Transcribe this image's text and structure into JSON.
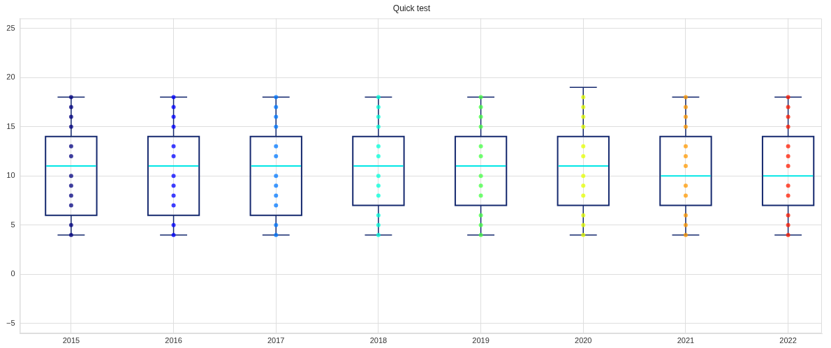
{
  "chart_data": {
    "type": "box",
    "title": "Quick test",
    "xlim": [
      2014.5,
      2022.33
    ],
    "xticks": [
      2015,
      2016,
      2017,
      2018,
      2019,
      2020,
      2021,
      2022
    ],
    "ylim": [
      -6,
      26
    ],
    "yticks": [
      {
        "value": -5,
        "label": "−5"
      },
      0,
      5,
      10,
      15,
      20,
      25
    ],
    "grid": true,
    "marker": "circle",
    "series": [
      {
        "type": "box",
        "color": "#14286e",
        "x": [
          2015,
          2016,
          2017,
          2018,
          2019,
          2020,
          2021,
          2022
        ],
        "boxes": [
          {
            "low": 4,
            "q1": 6,
            "median": 11,
            "q3": 14,
            "high": 18
          },
          {
            "low": 4,
            "q1": 6,
            "median": 11,
            "q3": 14,
            "high": 18
          },
          {
            "low": 4,
            "q1": 6,
            "median": 11,
            "q3": 14,
            "high": 18
          },
          {
            "low": 4,
            "q1": 7,
            "median": 11,
            "q3": 14,
            "high": 18
          },
          {
            "low": 4,
            "q1": 7,
            "median": 11,
            "q3": 14,
            "high": 18
          },
          {
            "low": 4,
            "q1": 7,
            "median": 11,
            "q3": 14,
            "high": 19
          },
          {
            "low": 4,
            "q1": 7,
            "median": 10,
            "q3": 14,
            "high": 18
          },
          {
            "low": 4,
            "q1": 7,
            "median": 10,
            "q3": 14,
            "high": 18
          }
        ]
      },
      {
        "type": "scatter",
        "x": [
          2015,
          2015,
          2015,
          2015,
          2015,
          2015,
          2015,
          2015,
          2015,
          2015,
          2015,
          2015,
          2016,
          2016,
          2016,
          2016,
          2016,
          2016,
          2016,
          2016,
          2016,
          2016,
          2016,
          2016,
          2017,
          2017,
          2017,
          2017,
          2017,
          2017,
          2017,
          2017,
          2017,
          2017,
          2017,
          2017,
          2018,
          2018,
          2018,
          2018,
          2018,
          2018,
          2018,
          2018,
          2018,
          2018,
          2018,
          2018,
          2019,
          2019,
          2019,
          2019,
          2019,
          2019,
          2019,
          2019,
          2019,
          2019,
          2019,
          2019,
          2020,
          2020,
          2020,
          2020,
          2020,
          2020,
          2020,
          2020,
          2020,
          2020,
          2020,
          2020,
          2021,
          2021,
          2021,
          2021,
          2021,
          2021,
          2021,
          2021,
          2021,
          2021,
          2021,
          2021,
          2022,
          2022,
          2022,
          2022,
          2022,
          2022,
          2022,
          2022,
          2022,
          2022,
          2022,
          2022
        ],
        "values": [
          4,
          5,
          7,
          8,
          9,
          10,
          12,
          13,
          15,
          16,
          17,
          18,
          4,
          5,
          7,
          8,
          9,
          10,
          12,
          13,
          15,
          16,
          17,
          18,
          4,
          5,
          7,
          8,
          9,
          10,
          12,
          13,
          15,
          16,
          17,
          18,
          4,
          5,
          6,
          8,
          9,
          10,
          12,
          13,
          15,
          16,
          17,
          18,
          4,
          5,
          6,
          8,
          9,
          10,
          12,
          13,
          15,
          16,
          17,
          18,
          4,
          5,
          6,
          8,
          9,
          10,
          12,
          13,
          15,
          16,
          17,
          18,
          4,
          5,
          6,
          8,
          9,
          11,
          12,
          13,
          15,
          16,
          17,
          18,
          4,
          5,
          6,
          8,
          9,
          11,
          12,
          13,
          15,
          16,
          17,
          18
        ],
        "colors": [
          "#00007f",
          "#00007f",
          "#00007f",
          "#00007f",
          "#00007f",
          "#00007f",
          "#00007f",
          "#00007f",
          "#00007f",
          "#00007f",
          "#00007f",
          "#00007f",
          "#0000ff",
          "#0000ff",
          "#0000ff",
          "#0000ff",
          "#0000ff",
          "#0000ff",
          "#0000ff",
          "#0000ff",
          "#0000ff",
          "#0000ff",
          "#0000ff",
          "#0000ff",
          "#0078ff",
          "#0078ff",
          "#0078ff",
          "#0078ff",
          "#0078ff",
          "#0078ff",
          "#0078ff",
          "#0078ff",
          "#0078ff",
          "#0078ff",
          "#0078ff",
          "#0078ff",
          "#00ffd8",
          "#00ffd8",
          "#00ffd8",
          "#00ffd8",
          "#00ffd8",
          "#00ffd8",
          "#00ffd8",
          "#00ffd8",
          "#00ffd8",
          "#00ffd8",
          "#00ffd8",
          "#00ffd8",
          "#44ff44",
          "#44ff44",
          "#44ff44",
          "#44ff44",
          "#44ff44",
          "#44ff44",
          "#44ff44",
          "#44ff44",
          "#44ff44",
          "#44ff44",
          "#44ff44",
          "#44ff44",
          "#e5ff00",
          "#e5ff00",
          "#e5ff00",
          "#e5ff00",
          "#e5ff00",
          "#e5ff00",
          "#e5ff00",
          "#e5ff00",
          "#e5ff00",
          "#e5ff00",
          "#e5ff00",
          "#e5ff00",
          "#ff9900",
          "#ff9900",
          "#ff9900",
          "#ff9900",
          "#ff9900",
          "#ff9900",
          "#ff9900",
          "#ff9900",
          "#ff9900",
          "#ff9900",
          "#ff9900",
          "#ff9900",
          "#ff1a00",
          "#ff1a00",
          "#ff1a00",
          "#ff1a00",
          "#ff1a00",
          "#ff1a00",
          "#ff1a00",
          "#ff1a00",
          "#ff1a00",
          "#ff1a00",
          "#ff1a00",
          "#ff1a00"
        ]
      }
    ]
  }
}
